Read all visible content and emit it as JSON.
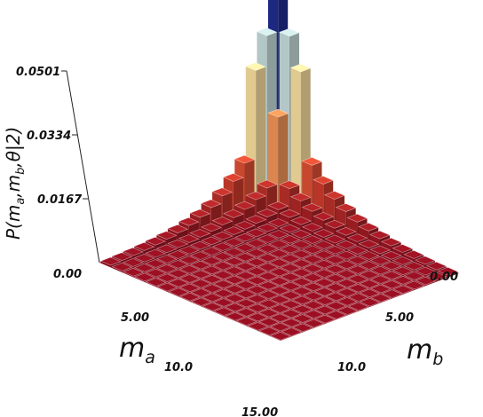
{
  "chart_data": {
    "type": "bar3d",
    "zlabel": "P(m_a,m_b,θ|2)",
    "xlabel": "m_a",
    "ylabel": "m_b",
    "z_ticks": [
      "0.00",
      "0.0167",
      "0.0334",
      "0.0501"
    ],
    "ma_ticks": [
      "5.00",
      "10.0",
      "15.00"
    ],
    "mb_ticks": [
      "0.00",
      "5.00",
      "10.0"
    ],
    "zlim": [
      0,
      0.0501
    ],
    "grid_range": [
      0,
      15
    ],
    "peak": {
      "ma": 0,
      "mb": 0,
      "value": 0.0622
    },
    "secondary_peaks": [
      {
        "ma": 0,
        "mb": 1,
        "value": 0.045
      },
      {
        "ma": 1,
        "mb": 0,
        "value": 0.045
      },
      {
        "ma": 0,
        "mb": 2,
        "value": 0.037
      },
      {
        "ma": 2,
        "mb": 0,
        "value": 0.037
      },
      {
        "ma": 1,
        "mb": 1,
        "value": 0.025
      }
    ],
    "colormap": [
      "#8b0d1f",
      "#d5452e",
      "#f4a460",
      "#f5e6a8",
      "#b6d5e3",
      "#1f2b8c"
    ]
  }
}
